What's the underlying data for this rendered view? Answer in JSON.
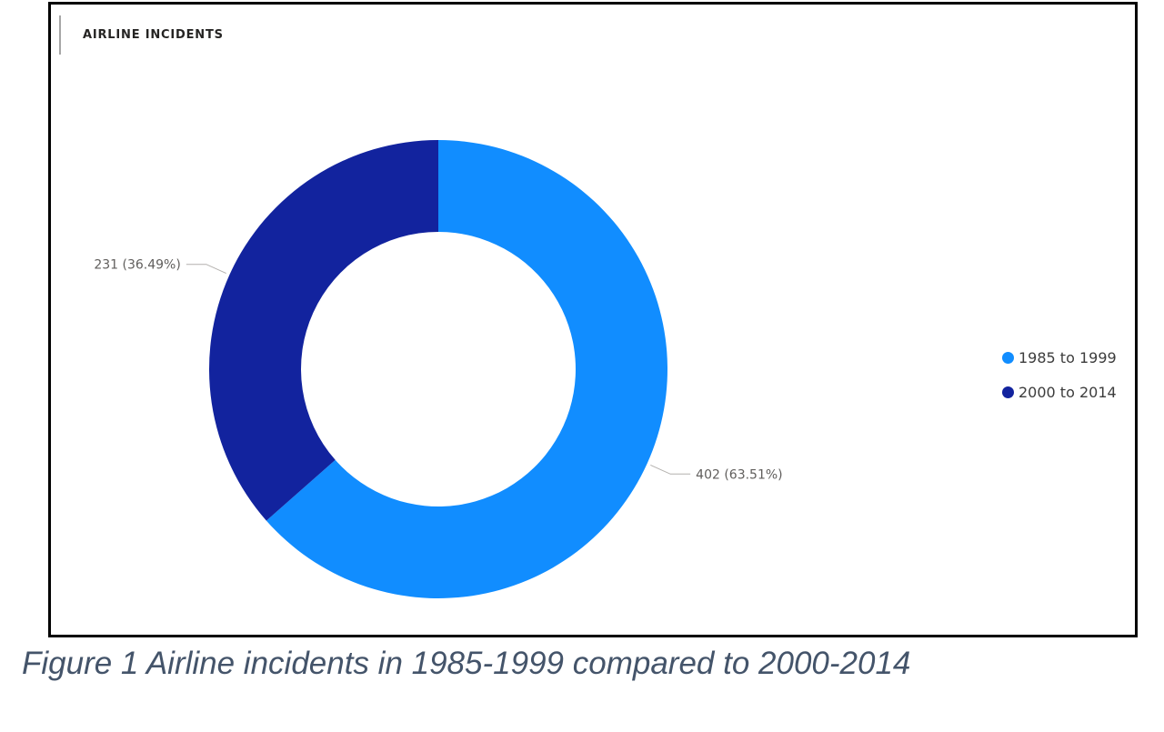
{
  "chart_data": {
    "type": "pie",
    "title": "AIRLINE INCIDENTS",
    "categories": [
      "1985 to 1999",
      "2000 to 2014"
    ],
    "values": [
      402,
      231
    ],
    "percentages": [
      63.51,
      36.49
    ],
    "data_labels": [
      "402 (63.51%)",
      "231 (36.49%)"
    ],
    "colors": [
      "#118dff",
      "#12239e"
    ],
    "legend_position": "right",
    "style": "donut"
  },
  "caption": "Figure 1 Airline incidents in 1985-1999 compared to 2000-2014"
}
